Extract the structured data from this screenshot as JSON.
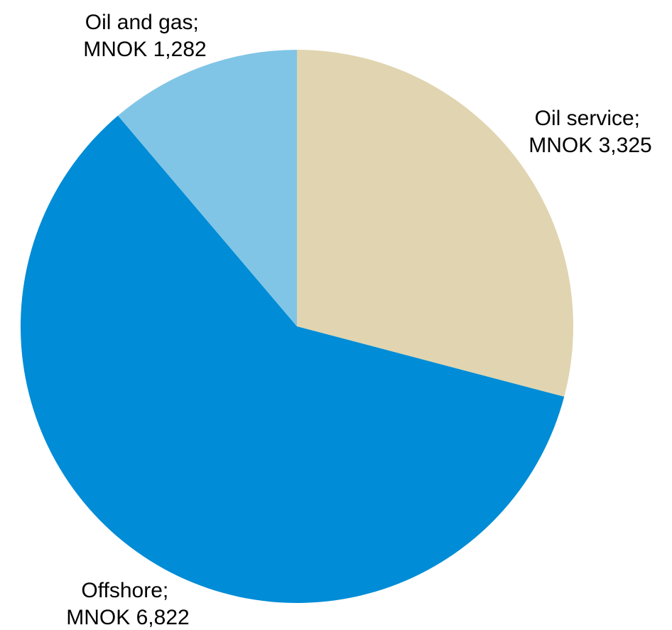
{
  "chart_data": {
    "type": "pie",
    "start_angle_deg": 0,
    "direction": "clockwise",
    "slices": [
      {
        "name": "Oil service",
        "value_label": "MNOK 3,325",
        "value": 3325,
        "color": "#E0D5B0"
      },
      {
        "name": "Offshore",
        "value_label": "MNOK 6,822",
        "value": 6822,
        "color": "#008CD6"
      },
      {
        "name": "Oil and gas",
        "value_label": "MNOK 1,282",
        "value": 1282,
        "color": "#80C5E6"
      }
    ],
    "labels": [
      {
        "line1": "Oil service;",
        "line2": "MNOK 3,325"
      },
      {
        "line1": "Offshore;",
        "line2": "MNOK 6,822"
      },
      {
        "line1": "Oil and gas;",
        "line2": "MNOK 1,282"
      }
    ],
    "legend": "none",
    "grid": false
  }
}
